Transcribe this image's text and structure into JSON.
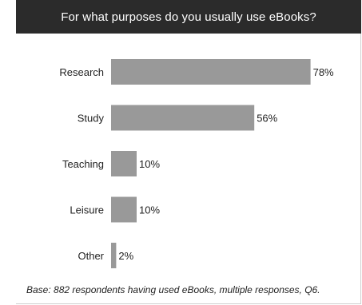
{
  "chart_data": {
    "type": "bar",
    "orientation": "horizontal",
    "title": "For what purposes do you usually use eBooks?",
    "categories": [
      "Research",
      "Study",
      "Teaching",
      "Leisure",
      "Other"
    ],
    "values": [
      78,
      56,
      10,
      10,
      2
    ],
    "value_labels": [
      "78%",
      "56%",
      "10%",
      "10%",
      "2%"
    ],
    "unit": "%",
    "xlim": [
      0,
      100
    ],
    "grid": false,
    "legend": "none",
    "footnote": "Base: 882 respondents having used eBooks, multiple responses, Q6."
  },
  "colors": {
    "bar": "#999999",
    "title_background": "#2b2b2b",
    "title_text": "#ffffff",
    "label_text": "#222222"
  }
}
